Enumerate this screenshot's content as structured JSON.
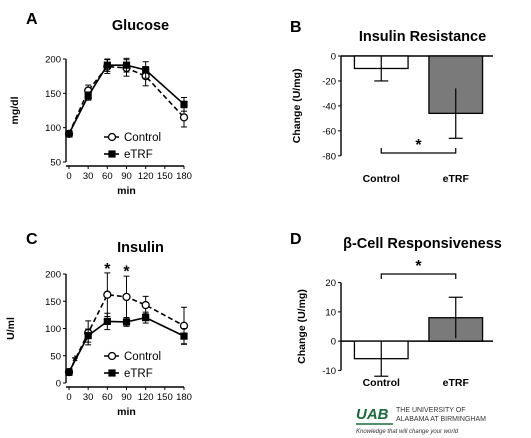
{
  "chart_data": [
    {
      "id": "A",
      "type": "line",
      "title": "Glucose",
      "panel_label": "A",
      "xlabel": "min",
      "ylabel": "mg/dl",
      "xlim": [
        0,
        180
      ],
      "ylim": [
        50,
        200
      ],
      "xticks": [
        0,
        30,
        60,
        90,
        120,
        150,
        180
      ],
      "yticks": [
        50,
        100,
        150,
        200
      ],
      "legend_position": "lower-center",
      "series": [
        {
          "name": "Control",
          "style": "dashed",
          "marker": "open-circle",
          "x": [
            0,
            30,
            60,
            90,
            120,
            180
          ],
          "y": [
            91,
            154,
            189,
            187,
            175,
            115
          ],
          "err": [
            3,
            8,
            10,
            12,
            14,
            14
          ]
        },
        {
          "name": "eTRF",
          "style": "solid",
          "marker": "filled-square",
          "x": [
            0,
            30,
            60,
            90,
            120,
            180
          ],
          "y": [
            91,
            146,
            191,
            191,
            184,
            134
          ],
          "err": [
            3,
            6,
            9,
            10,
            12,
            10
          ]
        }
      ]
    },
    {
      "id": "B",
      "type": "bar",
      "title": "Insulin Resistance",
      "panel_label": "B",
      "xlabel": "",
      "ylabel": "Change (U/mg)",
      "ylim": [
        -85,
        0
      ],
      "yticks": [
        0,
        -20,
        -40,
        -60,
        -80
      ],
      "categories": [
        "Control",
        "eTRF"
      ],
      "values": [
        -10,
        -46
      ],
      "err": [
        10,
        20
      ],
      "colors": [
        "#ffffff",
        "#7a7a7a"
      ],
      "significance": "*"
    },
    {
      "id": "C",
      "type": "line",
      "title": "Insulin",
      "panel_label": "C",
      "xlabel": "min",
      "ylabel": "U/ml",
      "xlim": [
        0,
        180
      ],
      "ylim": [
        0,
        200
      ],
      "xticks": [
        0,
        30,
        60,
        90,
        120,
        150,
        180
      ],
      "yticks": [
        0,
        50,
        100,
        150,
        200
      ],
      "legend_position": "lower-center",
      "series": [
        {
          "name": "Control",
          "style": "dashed",
          "marker": "open-circle",
          "x": [
            0,
            30,
            60,
            90,
            120,
            180
          ],
          "y": [
            20,
            92,
            162,
            158,
            143,
            105
          ],
          "err": [
            6,
            22,
            40,
            38,
            16,
            34
          ]
        },
        {
          "name": "eTRF",
          "style": "solid",
          "marker": "filled-square",
          "x": [
            0,
            30,
            60,
            90,
            120,
            180
          ],
          "y": [
            20,
            87,
            113,
            112,
            120,
            86
          ],
          "err": [
            5,
            12,
            15,
            8,
            10,
            14
          ]
        }
      ],
      "annotations": [
        {
          "text": "*",
          "x": 0,
          "y": 45
        },
        {
          "text": "*",
          "x": 60,
          "y": 215
        },
        {
          "text": "*",
          "x": 90,
          "y": 210
        }
      ]
    },
    {
      "id": "D",
      "type": "bar",
      "title": "β-Cell Responsiveness",
      "panel_label": "D",
      "xlabel": "",
      "ylabel": "Change (U/mg)",
      "ylim": [
        -15,
        25
      ],
      "yticks": [
        20,
        10,
        0,
        -10
      ],
      "categories": [
        "Control",
        "eTRF"
      ],
      "values": [
        -6,
        8
      ],
      "err": [
        6,
        7
      ],
      "colors": [
        "#ffffff",
        "#7a7a7a"
      ],
      "significance": "*"
    }
  ],
  "logo": {
    "mark": "UAB",
    "line1": "THE UNIVERSITY OF",
    "line2": "ALABAMA AT BIRMINGHAM",
    "tagline": "Knowledge that will change your world"
  }
}
